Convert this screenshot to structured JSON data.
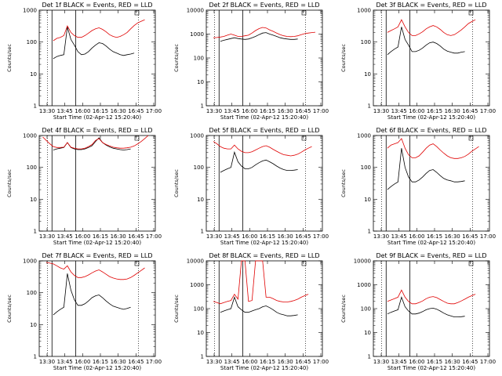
{
  "chart_data": [
    {
      "type": "line",
      "title": "Det 1f BLACK = Events, RED = LLD",
      "ylabel": "Counts/sec",
      "xlabel": "Start Time (02-Apr-12 15:20:40)",
      "x_ticks": [
        "13:30",
        "13:45",
        "16:00",
        "16:15",
        "16:30",
        "16:45",
        "17:00"
      ],
      "y_ticks": [
        "1",
        "10",
        "100",
        "1000"
      ],
      "ylim": [
        1,
        1000
      ],
      "y_scale": "log",
      "series": [
        {
          "name": "Events",
          "color": "#000000",
          "values": [
            null,
            null,
            null,
            null,
            30,
            35,
            38,
            40,
            300,
            120,
            80,
            50,
            40,
            42,
            50,
            65,
            80,
            95,
            90,
            75,
            60,
            50,
            45,
            40,
            38,
            40,
            42,
            45,
            null,
            null,
            null,
            null,
            null,
            null
          ]
        },
        {
          "name": "LLD",
          "color": "#e00000",
          "values": [
            null,
            null,
            null,
            null,
            110,
            130,
            140,
            160,
            320,
            200,
            160,
            140,
            140,
            160,
            190,
            230,
            260,
            280,
            250,
            210,
            170,
            150,
            140,
            150,
            170,
            200,
            260,
            330,
            400,
            450,
            500,
            null,
            null,
            null
          ]
        }
      ]
    },
    {
      "type": "line",
      "title": "Det 2f BLACK = Events, RED = LLD",
      "ylabel": "Counts/sec",
      "xlabel": "Start Time (02-Apr-12 15:20:40)",
      "x_ticks": [
        "13:30",
        "13:45",
        "16:00",
        "16:15",
        "16:30",
        "16:45",
        "17:00"
      ],
      "y_ticks": [
        "1",
        "10",
        "100",
        "1000",
        "10000"
      ],
      "ylim": [
        1,
        10000
      ],
      "y_scale": "log",
      "series": [
        {
          "name": "Events",
          "color": "#000000",
          "values": [
            null,
            null,
            null,
            null,
            500,
            550,
            600,
            650,
            700,
            650,
            620,
            600,
            620,
            700,
            800,
            950,
            1100,
            1150,
            1000,
            900,
            800,
            700,
            650,
            620,
            600,
            600,
            620,
            null,
            null,
            null,
            null,
            null,
            null,
            null
          ]
        },
        {
          "name": "LLD",
          "color": "#e00000",
          "values": [
            null,
            null,
            700,
            720,
            750,
            800,
            900,
            1000,
            900,
            800,
            800,
            850,
            900,
            1100,
            1400,
            1700,
            1900,
            1800,
            1500,
            1300,
            1100,
            950,
            850,
            800,
            780,
            800,
            850,
            950,
            1050,
            1100,
            1150,
            1200,
            null,
            null
          ]
        }
      ]
    },
    {
      "type": "line",
      "title": "Det 3f BLACK = Events, RED = LLD",
      "ylabel": "Counts/sec",
      "xlabel": "Start Time (02-Apr-12 15:20:40)",
      "x_ticks": [
        "13:30",
        "13:45",
        "16:00",
        "16:15",
        "16:30",
        "16:45",
        "17:00"
      ],
      "y_ticks": [
        "1",
        "10",
        "100",
        "1000"
      ],
      "ylim": [
        1,
        1000
      ],
      "y_scale": "log",
      "series": [
        {
          "name": "Events",
          "color": "#000000",
          "values": [
            null,
            null,
            null,
            null,
            40,
            50,
            60,
            70,
            300,
            120,
            80,
            50,
            50,
            55,
            65,
            80,
            95,
            100,
            90,
            75,
            60,
            52,
            48,
            45,
            45,
            48,
            50,
            null,
            null,
            null,
            null,
            null,
            null,
            null
          ]
        },
        {
          "name": "LLD",
          "color": "#e00000",
          "values": [
            null,
            null,
            null,
            null,
            200,
            230,
            260,
            300,
            500,
            300,
            200,
            160,
            160,
            180,
            210,
            260,
            300,
            330,
            300,
            250,
            200,
            170,
            160,
            170,
            200,
            240,
            300,
            380,
            440,
            500,
            null,
            null,
            null,
            null
          ]
        }
      ]
    },
    {
      "type": "line",
      "title": "Det 4f BLACK = Events, RED = LLD",
      "ylabel": "Counts/sec",
      "xlabel": "Start Time (02-Apr-12 15:20:40)",
      "x_ticks": [
        "13:30",
        "13:45",
        "16:00",
        "16:15",
        "16:30",
        "16:45",
        "17:00"
      ],
      "y_ticks": [
        "1",
        "10",
        "100",
        "1000"
      ],
      "ylim": [
        1,
        1000
      ],
      "y_scale": "log",
      "series": [
        {
          "name": "Events",
          "color": "#000000",
          "values": [
            null,
            null,
            null,
            null,
            350,
            380,
            400,
            420,
            600,
            420,
            380,
            360,
            360,
            380,
            420,
            480,
            650,
            850,
            600,
            500,
            440,
            400,
            380,
            360,
            350,
            360,
            380,
            null,
            null,
            null,
            null,
            null,
            null,
            null
          ]
        },
        {
          "name": "LLD",
          "color": "#e00000",
          "values": [
            null,
            900,
            700,
            550,
            450,
            420,
            420,
            430,
            600,
            430,
            400,
            380,
            380,
            400,
            450,
            520,
            700,
            800,
            600,
            520,
            470,
            430,
            410,
            400,
            400,
            410,
            430,
            470,
            550,
            650,
            800,
            1000,
            null,
            null
          ]
        }
      ]
    },
    {
      "type": "line",
      "title": "Det 5f BLACK = Events, RED = LLD",
      "ylabel": "Counts/sec",
      "xlabel": "Start Time (02-Apr-12 15:20:40)",
      "x_ticks": [
        "13:30",
        "13:45",
        "16:00",
        "16:15",
        "16:30",
        "16:45",
        "17:00"
      ],
      "y_ticks": [
        "1",
        "10",
        "100",
        "1000"
      ],
      "ylim": [
        1,
        1000
      ],
      "y_scale": "log",
      "series": [
        {
          "name": "Events",
          "color": "#000000",
          "values": [
            null,
            null,
            null,
            null,
            70,
            80,
            90,
            100,
            300,
            150,
            110,
            90,
            90,
            100,
            120,
            140,
            160,
            170,
            150,
            130,
            110,
            95,
            85,
            80,
            80,
            82,
            85,
            null,
            null,
            null,
            null,
            null,
            null,
            null
          ]
        },
        {
          "name": "LLD",
          "color": "#e00000",
          "values": [
            null,
            null,
            650,
            550,
            450,
            400,
            380,
            380,
            500,
            380,
            320,
            290,
            290,
            310,
            350,
            400,
            450,
            480,
            430,
            370,
            320,
            280,
            250,
            240,
            230,
            240,
            260,
            300,
            350,
            400,
            450,
            null,
            null,
            null
          ]
        }
      ]
    },
    {
      "type": "line",
      "title": "Det 6f BLACK = Events, RED = LLD",
      "ylabel": "Counts/sec",
      "xlabel": "Start Time (02-Apr-12 15:20:40)",
      "x_ticks": [
        "13:30",
        "13:45",
        "16:00",
        "16:15",
        "16:30",
        "16:45",
        "17:00"
      ],
      "y_ticks": [
        "1",
        "10",
        "100",
        "1000"
      ],
      "ylim": [
        1,
        1000
      ],
      "y_scale": "log",
      "series": [
        {
          "name": "Events",
          "color": "#000000",
          "values": [
            null,
            null,
            null,
            null,
            20,
            25,
            30,
            35,
            400,
            100,
            50,
            35,
            35,
            40,
            50,
            65,
            80,
            85,
            70,
            55,
            45,
            40,
            38,
            35,
            35,
            36,
            38,
            null,
            null,
            null,
            null,
            null,
            null,
            null
          ]
        },
        {
          "name": "LLD",
          "color": "#e00000",
          "values": [
            null,
            null,
            null,
            null,
            400,
            500,
            550,
            600,
            800,
            400,
            250,
            200,
            200,
            230,
            300,
            400,
            500,
            550,
            450,
            350,
            280,
            230,
            200,
            190,
            190,
            200,
            220,
            260,
            320,
            380,
            450,
            null,
            null,
            null
          ]
        }
      ]
    },
    {
      "type": "line",
      "title": "Det 7f BLACK = Events, RED = LLD",
      "ylabel": "Counts/sec",
      "xlabel": "Start Time (02-Apr-12 15:20:40)",
      "x_ticks": [
        "13:30",
        "13:45",
        "16:00",
        "16:15",
        "16:30",
        "16:45",
        "17:00"
      ],
      "y_ticks": [
        "1",
        "10",
        "100",
        "1000"
      ],
      "ylim": [
        1,
        1000
      ],
      "y_scale": "log",
      "series": [
        {
          "name": "Events",
          "color": "#000000",
          "values": [
            null,
            null,
            null,
            null,
            20,
            25,
            30,
            35,
            400,
            120,
            60,
            40,
            40,
            45,
            55,
            70,
            80,
            85,
            70,
            55,
            45,
            38,
            35,
            32,
            30,
            32,
            35,
            null,
            null,
            null,
            null,
            null,
            null,
            null
          ]
        },
        {
          "name": "LLD",
          "color": "#e00000",
          "values": [
            null,
            null,
            900,
            850,
            800,
            700,
            600,
            550,
            700,
            450,
            350,
            300,
            300,
            320,
            360,
            420,
            480,
            520,
            450,
            380,
            320,
            290,
            270,
            260,
            260,
            270,
            300,
            350,
            420,
            500,
            600,
            null,
            null,
            null
          ]
        }
      ]
    },
    {
      "type": "line",
      "title": "Det 8f BLACK = Events, RED = LLD",
      "ylabel": "Counts/sec",
      "xlabel": "Start Time (02-Apr-12 15:20:40)",
      "x_ticks": [
        "13:30",
        "13:45",
        "16:00",
        "16:15",
        "16:30",
        "16:45",
        "17:00"
      ],
      "y_ticks": [
        "1",
        "10",
        "100",
        "1000",
        "10000"
      ],
      "ylim": [
        1,
        10000
      ],
      "y_scale": "log",
      "series": [
        {
          "name": "Events",
          "color": "#000000",
          "values": [
            null,
            null,
            null,
            null,
            70,
            80,
            90,
            100,
            300,
            120,
            90,
            70,
            70,
            80,
            90,
            100,
            120,
            130,
            110,
            90,
            70,
            60,
            55,
            50,
            50,
            52,
            55,
            null,
            null,
            null,
            null,
            null,
            null,
            null
          ]
        },
        {
          "name": "LLD",
          "color": "#e00000",
          "values": [
            null,
            null,
            200,
            180,
            160,
            180,
            200,
            220,
            400,
            250,
            10000,
            10000,
            200,
            220,
            10000,
            10000,
            10000,
            300,
            300,
            260,
            220,
            200,
            190,
            190,
            200,
            220,
            250,
            300,
            350,
            400,
            null,
            null,
            null,
            null
          ]
        }
      ]
    },
    {
      "type": "line",
      "title": "Det 9f BLACK = Events, RED = LLD",
      "ylabel": "Counts/sec",
      "xlabel": "Start Time (02-Apr-12 15:20:40)",
      "x_ticks": [
        "13:30",
        "13:45",
        "16:00",
        "16:15",
        "16:30",
        "16:45",
        "17:00"
      ],
      "y_ticks": [
        "1",
        "10",
        "100",
        "1000",
        "10000"
      ],
      "ylim": [
        1,
        10000
      ],
      "y_scale": "log",
      "series": [
        {
          "name": "Events",
          "color": "#000000",
          "values": [
            null,
            null,
            null,
            null,
            60,
            70,
            80,
            90,
            300,
            120,
            80,
            60,
            60,
            65,
            75,
            90,
            100,
            105,
            95,
            80,
            65,
            55,
            50,
            45,
            45,
            46,
            48,
            null,
            null,
            null,
            null,
            null,
            null,
            null
          ]
        },
        {
          "name": "LLD",
          "color": "#e00000",
          "values": [
            null,
            null,
            null,
            null,
            200,
            230,
            260,
            300,
            600,
            300,
            200,
            160,
            160,
            180,
            210,
            260,
            300,
            320,
            290,
            240,
            200,
            170,
            160,
            160,
            180,
            210,
            250,
            300,
            350,
            400,
            null,
            null,
            null,
            null
          ]
        }
      ]
    }
  ]
}
